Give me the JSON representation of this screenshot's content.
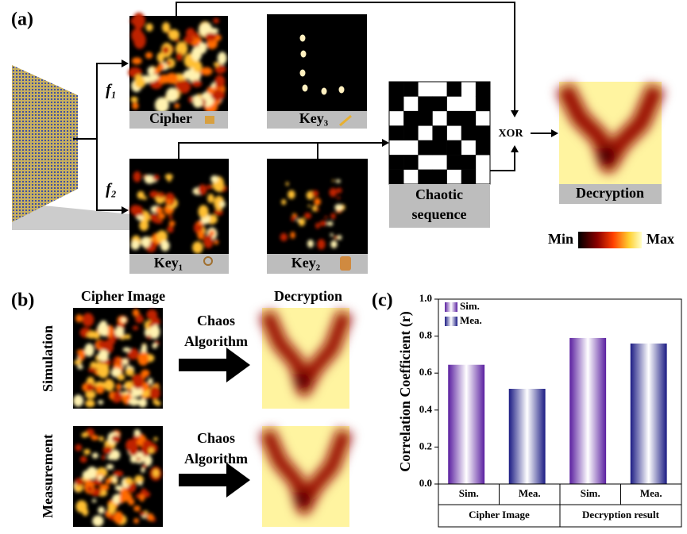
{
  "panel_a": {
    "label": "(a)",
    "f1": "f₁",
    "f2": "f₂",
    "cipher": "Cipher",
    "key3": "Key₃",
    "key1": "Key₁",
    "key2": "Key₂",
    "chaotic": [
      "Chaotic",
      "sequence"
    ],
    "xor": "XOR",
    "decryption": "Decryption",
    "min": "Min",
    "max": "Max"
  },
  "panel_b": {
    "label": "(b)",
    "cipher_heading": "Cipher Image",
    "decryption_heading": "Decryption",
    "rows": [
      {
        "label": "Simulation",
        "algorithm": [
          "Chaos",
          "Algorithm"
        ]
      },
      {
        "label": "Measurement",
        "algorithm": [
          "Chaos",
          "Algorithm"
        ]
      }
    ]
  },
  "chart_data": {
    "type": "bar",
    "panel_label": "(c)",
    "ylabel": "Correlation Coefficient (r)",
    "categories": [
      "Cipher Image",
      "Decryption result"
    ],
    "series": [
      {
        "name": "Sim.",
        "color": "#5a1fa0",
        "values": [
          0.645,
          0.79
        ]
      },
      {
        "name": "Mea.",
        "color": "#1c1c84",
        "values": [
          0.515,
          0.76
        ]
      }
    ],
    "ylim": [
      0,
      1.0
    ],
    "yticks": [
      {
        "value": 0,
        "label": "0.0"
      },
      {
        "value": 0.2,
        "label": "0.2"
      },
      {
        "value": 0.4,
        "label": "0.4"
      },
      {
        "value": 0.6,
        "label": "0.6"
      },
      {
        "value": 0.8,
        "label": "0.8"
      },
      {
        "value": 1.0,
        "label": "1.0"
      }
    ],
    "legend": "top-left"
  }
}
